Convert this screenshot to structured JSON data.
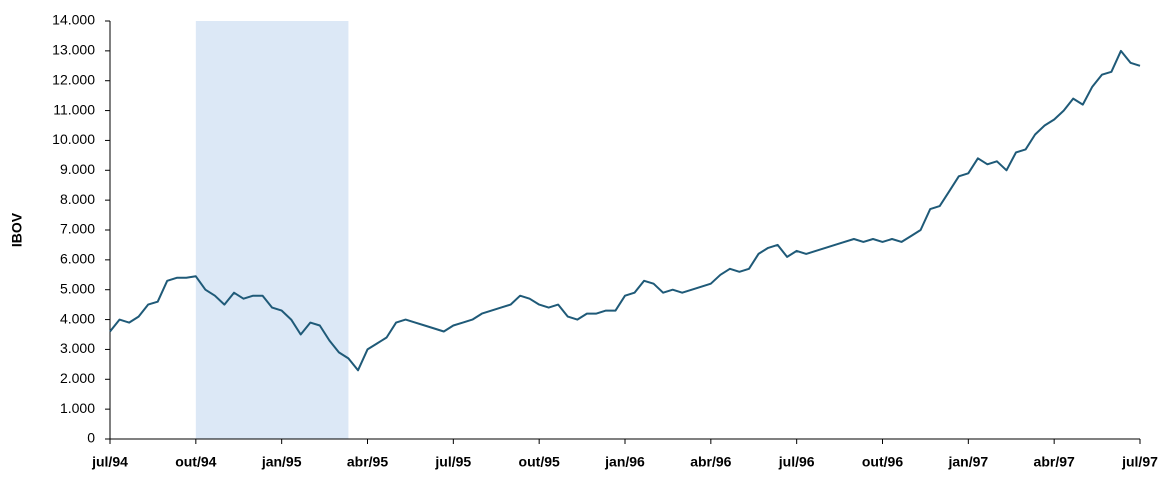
{
  "chart_data": {
    "type": "line",
    "y_label": "IBOV",
    "color": "#1f5a78",
    "highlight_color": "#dce8f6",
    "highlight_range": [
      9,
      25
    ],
    "categories": [
      "jul/94",
      null,
      null,
      null,
      null,
      null,
      null,
      null,
      null,
      "out/94",
      null,
      null,
      null,
      null,
      null,
      null,
      null,
      null,
      "jan/95",
      null,
      null,
      null,
      null,
      null,
      null,
      null,
      null,
      "abr/95",
      null,
      null,
      null,
      null,
      null,
      null,
      null,
      null,
      "jul/95",
      null,
      null,
      null,
      null,
      null,
      null,
      null,
      null,
      "out/95",
      null,
      null,
      null,
      null,
      null,
      null,
      null,
      null,
      "jan/96",
      null,
      null,
      null,
      null,
      null,
      null,
      null,
      null,
      "abr/96",
      null,
      null,
      null,
      null,
      null,
      null,
      null,
      null,
      "jul/96",
      null,
      null,
      null,
      null,
      null,
      null,
      null,
      null,
      "out/96",
      null,
      null,
      null,
      null,
      null,
      null,
      null,
      null,
      "jan/97",
      null,
      null,
      null,
      null,
      null,
      null,
      null,
      null,
      "abr/97",
      null,
      null,
      null,
      null,
      null,
      null,
      null,
      null,
      "jul/97"
    ],
    "values": [
      3600,
      4000,
      3900,
      4100,
      4500,
      4600,
      5300,
      5400,
      5400,
      5450,
      5000,
      4800,
      4500,
      4900,
      4700,
      4800,
      4800,
      4400,
      4300,
      4000,
      3500,
      3900,
      3800,
      3300,
      2900,
      2700,
      2300,
      3000,
      3200,
      3400,
      3900,
      4000,
      3900,
      3800,
      3700,
      3600,
      3800,
      3900,
      4000,
      4200,
      4300,
      4400,
      4500,
      4800,
      4700,
      4500,
      4400,
      4500,
      4100,
      4000,
      4200,
      4200,
      4300,
      4300,
      4800,
      4900,
      5300,
      5200,
      4900,
      5000,
      4900,
      5000,
      5100,
      5200,
      5500,
      5700,
      5600,
      5700,
      6200,
      6400,
      6500,
      6100,
      6300,
      6200,
      6300,
      6400,
      6500,
      6600,
      6700,
      6600,
      6700,
      6600,
      6700,
      6600,
      6800,
      7000,
      7700,
      7800,
      8300,
      8800,
      8900,
      9400,
      9200,
      9300,
      9000,
      9600,
      9700,
      10200,
      10500,
      10700,
      11000,
      11400,
      11200,
      11800,
      12200,
      12300,
      13000,
      12600,
      12500
    ],
    "ylim": [
      0,
      14000
    ],
    "yticks": [
      {
        "value": 0,
        "label": "0"
      },
      {
        "value": 1000,
        "label": "1.000"
      },
      {
        "value": 2000,
        "label": "2.000"
      },
      {
        "value": 3000,
        "label": "3.000"
      },
      {
        "value": 4000,
        "label": "4.000"
      },
      {
        "value": 5000,
        "label": "5.000"
      },
      {
        "value": 6000,
        "label": "6.000"
      },
      {
        "value": 7000,
        "label": "7.000"
      },
      {
        "value": 8000,
        "label": "8.000"
      },
      {
        "value": 9000,
        "label": "9.000"
      },
      {
        "value": 10000,
        "label": "10.000"
      },
      {
        "value": 11000,
        "label": "11.000"
      },
      {
        "value": 12000,
        "label": "12.000"
      },
      {
        "value": 13000,
        "label": "13.000"
      },
      {
        "value": 14000,
        "label": "14.000"
      }
    ]
  }
}
